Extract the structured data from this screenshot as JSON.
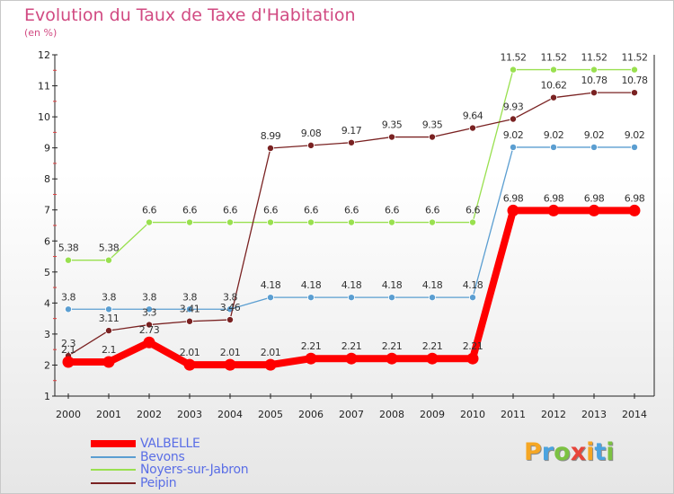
{
  "title": "Evolution du Taux de Taxe d'Habitation",
  "subtitle": "(en %)",
  "chart_data": {
    "type": "line",
    "title": "Evolution du Taux de Taxe d'Habitation",
    "ylabel": "(en %)",
    "xlabel": "",
    "x": [
      2000,
      2001,
      2002,
      2003,
      2004,
      2005,
      2006,
      2007,
      2008,
      2009,
      2010,
      2011,
      2012,
      2013,
      2014
    ],
    "ylim": [
      1,
      12
    ],
    "yticks": [
      1,
      2,
      3,
      4,
      5,
      6,
      7,
      8,
      9,
      10,
      11,
      12
    ],
    "grid": false,
    "legend_position": "bottom-left",
    "series": [
      {
        "name": "Noyers-sur-Jabron",
        "color": "#99e04f",
        "values": [
          5.38,
          5.38,
          6.6,
          6.6,
          6.6,
          6.6,
          6.6,
          6.6,
          6.6,
          6.6,
          6.6,
          11.52,
          11.52,
          11.52,
          11.52
        ],
        "labels": [
          "5.38",
          "5.38",
          "6.6",
          "6.6",
          "6.6",
          "6.6",
          "6.6",
          "6.6",
          "6.6",
          "6.6",
          "6.6",
          "11.52",
          "11.52",
          "11.52",
          "11.52"
        ]
      },
      {
        "name": "Bevons",
        "color": "#5b9ed1",
        "values": [
          3.8,
          3.8,
          3.8,
          3.8,
          3.8,
          4.18,
          4.18,
          4.18,
          4.18,
          4.18,
          4.18,
          9.02,
          9.02,
          9.02,
          9.02
        ],
        "labels": [
          "3.8",
          "3.8",
          "3.8",
          "3.8",
          "3.8",
          "4.18",
          "4.18",
          "4.18",
          "4.18",
          "4.18",
          "4.18",
          "9.02",
          "9.02",
          "9.02",
          "9.02"
        ]
      },
      {
        "name": "Peipin",
        "color": "#7a2222",
        "values": [
          2.3,
          3.11,
          3.3,
          3.41,
          3.46,
          8.99,
          9.08,
          9.17,
          9.35,
          9.35,
          9.64,
          9.93,
          10.62,
          10.78,
          10.78
        ],
        "labels": [
          "2.3",
          "3.11",
          "3.3",
          "3.41",
          "3.46",
          "8.99",
          "9.08",
          "9.17",
          "9.35",
          "9.35",
          "9.64",
          "9.93",
          "10.62",
          "10.78",
          "10.78"
        ]
      },
      {
        "name": "VALBELLE",
        "color": "#ff0000",
        "values": [
          2.1,
          2.1,
          2.73,
          2.01,
          2.01,
          2.01,
          2.21,
          2.21,
          2.21,
          2.21,
          2.21,
          6.98,
          6.98,
          6.98,
          6.98
        ],
        "labels": [
          "2.1",
          "2.1",
          "2.73",
          "2.01",
          "2.01",
          "2.01",
          "2.21",
          "2.21",
          "2.21",
          "2.21",
          "2.21",
          "6.98",
          "6.98",
          "6.98",
          "6.98"
        ]
      }
    ],
    "legend_order": [
      "VALBELLE",
      "Bevons",
      "Noyers-sur-Jabron",
      "Peipin"
    ]
  },
  "logo": {
    "letters": [
      {
        "ch": "P",
        "color": "#f5a623"
      },
      {
        "ch": "r",
        "color": "#4aa3e0"
      },
      {
        "ch": "o",
        "color": "#7cc242"
      },
      {
        "ch": "x",
        "color": "#e8443a"
      },
      {
        "ch": "i",
        "color": "#f5a623"
      },
      {
        "ch": "t",
        "color": "#4aa3e0"
      },
      {
        "ch": "i",
        "color": "#7cc242"
      }
    ]
  }
}
